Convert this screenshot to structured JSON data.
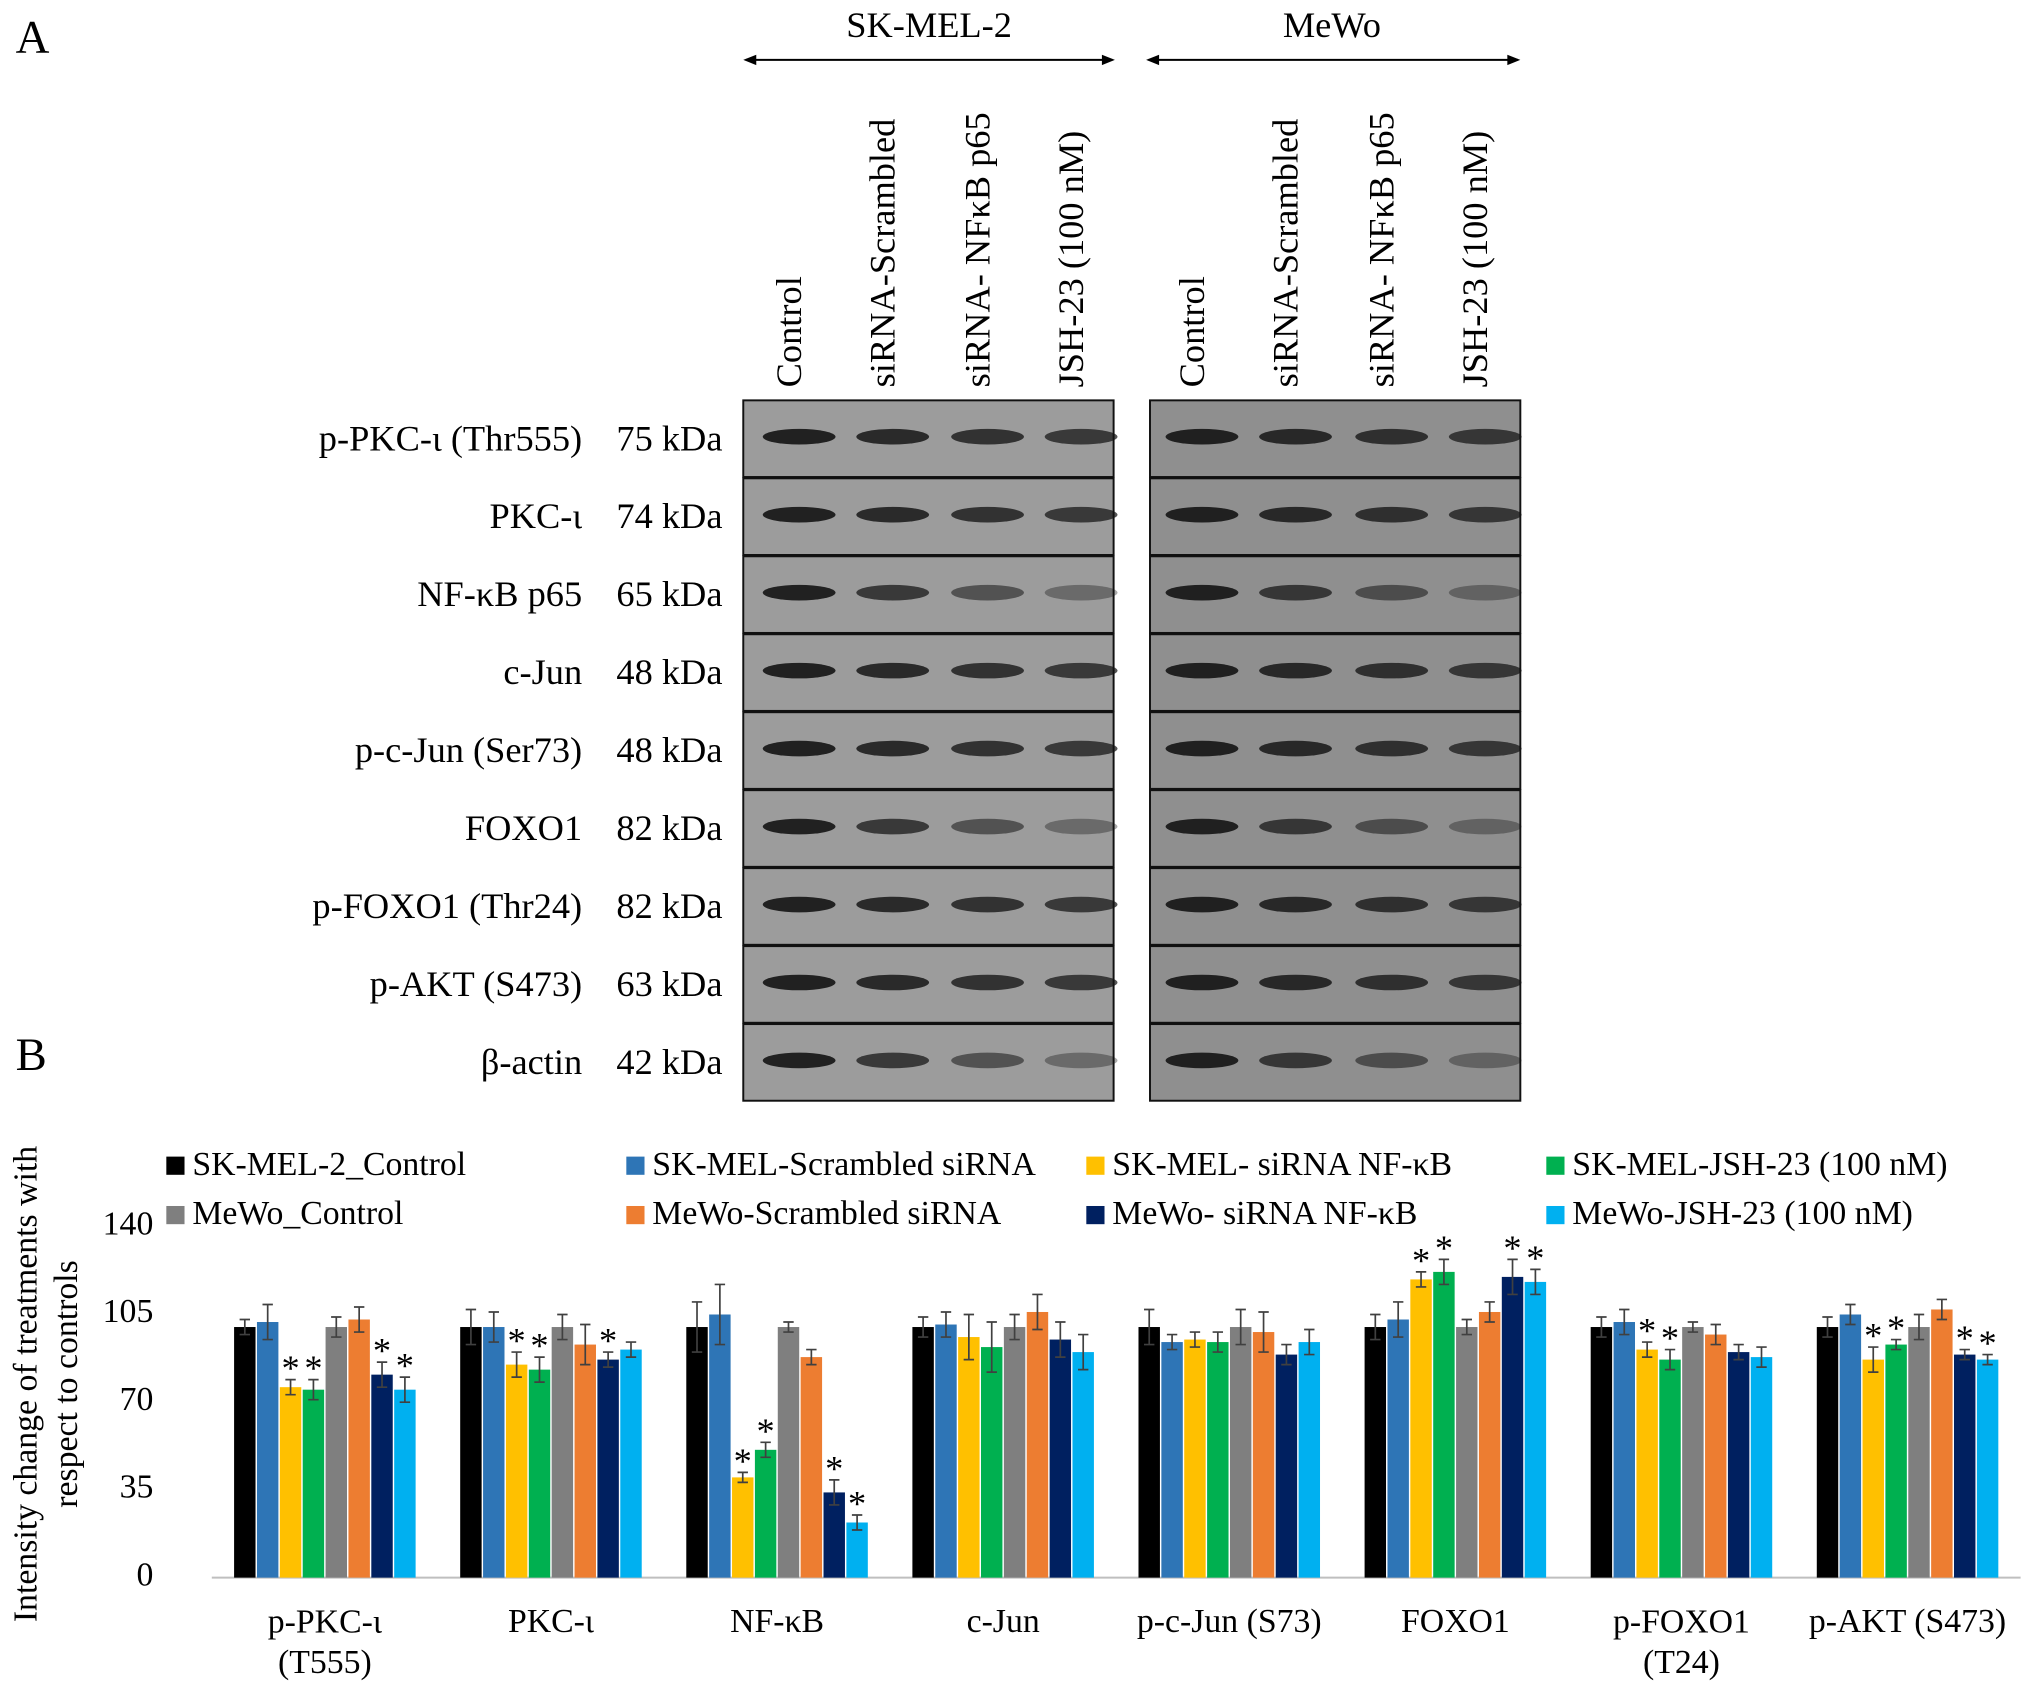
{
  "panel_a": {
    "label": "A",
    "cell_lines": [
      "SK-MEL-2",
      "MeWo"
    ],
    "lanes": [
      "Control",
      "siRNA-Scrambled",
      "siRNA- NFκB p65",
      "JSH-23 (100 nM)"
    ],
    "proteins": [
      {
        "name": "p-PKC-ι (Thr555)",
        "size": "75 kDa"
      },
      {
        "name": "PKC-ι",
        "size": "74 kDa"
      },
      {
        "name": "NF-κB p65",
        "size": "65 kDa"
      },
      {
        "name": "c-Jun",
        "size": "48 kDa"
      },
      {
        "name": "p-c-Jun (Ser73)",
        "size": "48 kDa"
      },
      {
        "name": "FOXO1",
        "size": "82 kDa"
      },
      {
        "name": "p-FOXO1 (Thr24)",
        "size": "82 kDa"
      },
      {
        "name": "p-AKT (S473)",
        "size": "63 kDa"
      },
      {
        "name": "β-actin",
        "size": "42 kDa"
      }
    ]
  },
  "panel_b": {
    "label": "B"
  },
  "chart_data": {
    "type": "bar",
    "y_label": "Intensity change of treatments with\nrespect to controls",
    "categories": [
      "p-PKC-ι\n(T555)",
      "PKC-ι",
      "NF-κB",
      "c-Jun",
      "p-c-Jun (S73)",
      "FOXO1",
      "p-FOXO1\n(T24)",
      "p-AKT (S473)"
    ],
    "ylim": [
      0,
      140
    ],
    "yticks": [
      0,
      35,
      70,
      105,
      140
    ],
    "grid": false,
    "legend": "top",
    "series": [
      {
        "name": "SK-MEL-2_Control",
        "color": "#000000",
        "values": [
          100,
          100,
          100,
          100,
          100,
          100,
          100,
          100
        ],
        "errors": [
          3,
          7,
          10,
          4,
          7,
          5,
          4,
          4
        ],
        "significance": [
          null,
          null,
          null,
          null,
          null,
          null,
          null,
          null
        ]
      },
      {
        "name": "SK-MEL-Scrambled siRNA",
        "color": "#2e75b6",
        "values": [
          102,
          100,
          105,
          101,
          94,
          103,
          102,
          105
        ],
        "errors": [
          7,
          6,
          12,
          5,
          3,
          7,
          5,
          4
        ],
        "significance": [
          null,
          null,
          null,
          null,
          null,
          null,
          null,
          null
        ]
      },
      {
        "name": "SK-MEL- siRNA NF-κB",
        "color": "#ffc000",
        "values": [
          76,
          85,
          40,
          96,
          95,
          119,
          91,
          87
        ],
        "errors": [
          3,
          5,
          2,
          9,
          3,
          3,
          3,
          5
        ],
        "significance": [
          "*",
          "*",
          "*",
          null,
          null,
          "*",
          "*",
          "*"
        ]
      },
      {
        "name": "SK-MEL-JSH-23 (100 nM)",
        "color": "#00b050",
        "values": [
          75,
          83,
          51,
          92,
          94,
          122,
          87,
          93
        ],
        "errors": [
          4,
          5,
          3,
          10,
          4,
          5,
          4,
          2
        ],
        "significance": [
          "*",
          "*",
          "*",
          null,
          null,
          "*",
          "*",
          "*"
        ]
      },
      {
        "name": "MeWo_Control",
        "color": "#7f7f7f",
        "values": [
          100,
          100,
          100,
          100,
          100,
          100,
          100,
          100
        ],
        "errors": [
          4,
          5,
          2,
          5,
          7,
          3,
          2,
          5
        ],
        "significance": [
          null,
          null,
          null,
          null,
          null,
          null,
          null,
          null
        ]
      },
      {
        "name": "MeWo-Scrambled siRNA",
        "color": "#ed7d31",
        "values": [
          103,
          93,
          88,
          106,
          98,
          106,
          97,
          107
        ],
        "errors": [
          5,
          8,
          3,
          7,
          8,
          4,
          4,
          4
        ],
        "significance": [
          null,
          null,
          null,
          null,
          null,
          null,
          null,
          null
        ]
      },
      {
        "name": "MeWo- siRNA NF-κB",
        "color": "#002060",
        "values": [
          81,
          87,
          34,
          95,
          89,
          120,
          90,
          89
        ],
        "errors": [
          5,
          3,
          5,
          7,
          4,
          7,
          3,
          2
        ],
        "significance": [
          "*",
          "*",
          "*",
          null,
          null,
          "*",
          null,
          "*"
        ]
      },
      {
        "name": "MeWo-JSH-23 (100 nM)",
        "color": "#00b0f0",
        "values": [
          75,
          91,
          22,
          90,
          94,
          118,
          88,
          87
        ],
        "errors": [
          5,
          3,
          3,
          7,
          5,
          5,
          4,
          2
        ],
        "significance": [
          "*",
          null,
          "*",
          null,
          null,
          "*",
          null,
          "*"
        ]
      }
    ]
  }
}
